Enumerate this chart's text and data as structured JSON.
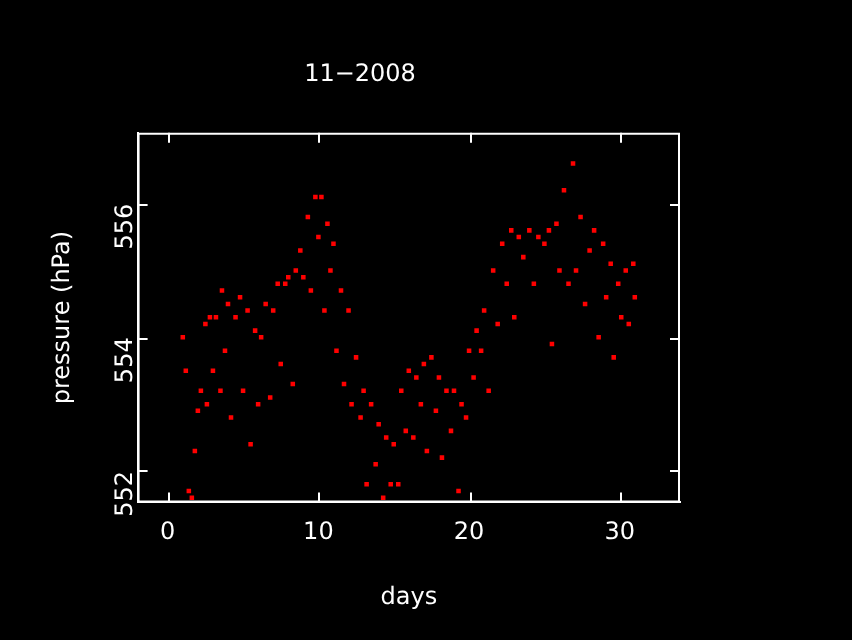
{
  "chart_data": {
    "type": "scatter",
    "title": "11−2008",
    "xlabel": "days",
    "ylabel": "pressure (hPa)",
    "xlim": [
      -2,
      34
    ],
    "xticks": [
      0,
      10,
      20,
      30
    ],
    "ylim": [
      551.53,
      557.06
    ],
    "yticks": [
      552,
      554,
      556
    ],
    "grid": false,
    "legend": false,
    "marker": "square",
    "series": [
      {
        "color": "#ff0000",
        "x": [
          1.0,
          1.2,
          1.4,
          1.6,
          1.8,
          2.0,
          2.2,
          2.5,
          2.6,
          2.8,
          3.0,
          3.2,
          3.5,
          3.6,
          3.8,
          4.0,
          4.2,
          4.5,
          4.8,
          5.0,
          5.3,
          5.5,
          5.8,
          6.0,
          6.2,
          6.5,
          6.8,
          7.0,
          7.3,
          7.5,
          7.8,
          8.0,
          8.3,
          8.5,
          8.8,
          9.0,
          9.3,
          9.5,
          9.8,
          10.0,
          10.2,
          10.4,
          10.6,
          10.8,
          11.0,
          11.2,
          11.5,
          11.7,
          12.0,
          12.2,
          12.5,
          12.8,
          13.0,
          13.2,
          13.5,
          13.8,
          14.0,
          14.3,
          14.5,
          14.8,
          15.0,
          15.3,
          15.5,
          15.8,
          16.0,
          16.3,
          16.5,
          16.8,
          17.0,
          17.2,
          17.5,
          17.8,
          18.0,
          18.2,
          18.5,
          18.8,
          19.0,
          19.3,
          19.5,
          19.8,
          20.0,
          20.3,
          20.5,
          20.8,
          21.0,
          21.3,
          21.6,
          21.9,
          22.2,
          22.5,
          22.8,
          23.0,
          23.3,
          23.6,
          24.0,
          24.3,
          24.6,
          25.0,
          25.3,
          25.5,
          25.8,
          26.0,
          26.3,
          26.6,
          26.9,
          27.1,
          27.4,
          27.7,
          28.0,
          28.3,
          28.6,
          28.9,
          29.1,
          29.4,
          29.6,
          29.9,
          30.1,
          30.4,
          30.6,
          30.9,
          31.0
        ],
        "values": [
          554.0,
          553.5,
          551.7,
          551.6,
          552.3,
          552.9,
          553.2,
          554.2,
          553.0,
          554.3,
          553.5,
          554.3,
          553.2,
          554.7,
          553.8,
          554.5,
          552.8,
          554.3,
          554.6,
          553.2,
          554.4,
          552.4,
          554.1,
          553.0,
          554.0,
          554.5,
          553.1,
          554.4,
          554.8,
          553.6,
          554.8,
          554.9,
          553.3,
          555.0,
          555.3,
          554.9,
          555.8,
          554.7,
          556.1,
          555.5,
          556.1,
          554.4,
          555.7,
          555.0,
          555.4,
          553.8,
          554.7,
          553.3,
          554.4,
          553.0,
          553.7,
          552.8,
          553.2,
          551.8,
          553.0,
          552.1,
          552.7,
          551.6,
          552.5,
          551.8,
          552.4,
          551.8,
          553.2,
          552.6,
          553.5,
          552.5,
          553.4,
          553.0,
          553.6,
          552.3,
          553.7,
          552.9,
          553.4,
          552.2,
          553.2,
          552.6,
          553.2,
          551.7,
          553.0,
          552.8,
          553.8,
          553.4,
          554.1,
          553.8,
          554.4,
          553.2,
          555.0,
          554.2,
          555.4,
          554.8,
          555.6,
          554.3,
          555.5,
          555.2,
          555.6,
          554.8,
          555.5,
          555.4,
          555.6,
          553.9,
          555.7,
          555.0,
          556.2,
          554.8,
          556.6,
          555.0,
          555.8,
          554.5,
          555.3,
          555.6,
          554.0,
          555.4,
          554.6,
          555.1,
          553.7,
          554.8,
          554.3,
          555.0,
          554.2,
          555.1,
          554.6
        ]
      }
    ]
  }
}
